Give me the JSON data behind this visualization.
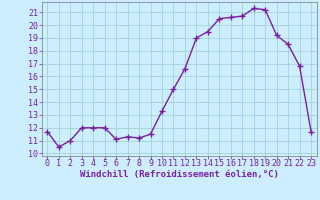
{
  "x": [
    0,
    1,
    2,
    3,
    4,
    5,
    6,
    7,
    8,
    9,
    10,
    11,
    12,
    13,
    14,
    15,
    16,
    17,
    18,
    19,
    20,
    21,
    22,
    23
  ],
  "y": [
    11.7,
    10.5,
    11.0,
    12.0,
    12.0,
    12.0,
    11.1,
    11.3,
    11.2,
    11.5,
    13.3,
    15.0,
    16.6,
    19.0,
    19.5,
    20.5,
    20.6,
    20.7,
    21.3,
    21.2,
    19.2,
    18.5,
    16.8,
    11.7
  ],
  "line_color": "#7b1fa2",
  "marker": "+",
  "marker_size": 4,
  "bg_color": "#cceeff",
  "grid_color": "#99cccc",
  "xlabel": "Windchill (Refroidissement éolien,°C)",
  "xlim": [
    -0.5,
    23.5
  ],
  "ylim": [
    9.8,
    21.8
  ],
  "yticks": [
    10,
    11,
    12,
    13,
    14,
    15,
    16,
    17,
    18,
    19,
    20,
    21
  ],
  "xticks": [
    0,
    1,
    2,
    3,
    4,
    5,
    6,
    7,
    8,
    9,
    10,
    11,
    12,
    13,
    14,
    15,
    16,
    17,
    18,
    19,
    20,
    21,
    22,
    23
  ],
  "xlabel_fontsize": 6.5,
  "tick_fontsize": 6,
  "line_width": 1.0,
  "text_color": "#7b1fa2"
}
